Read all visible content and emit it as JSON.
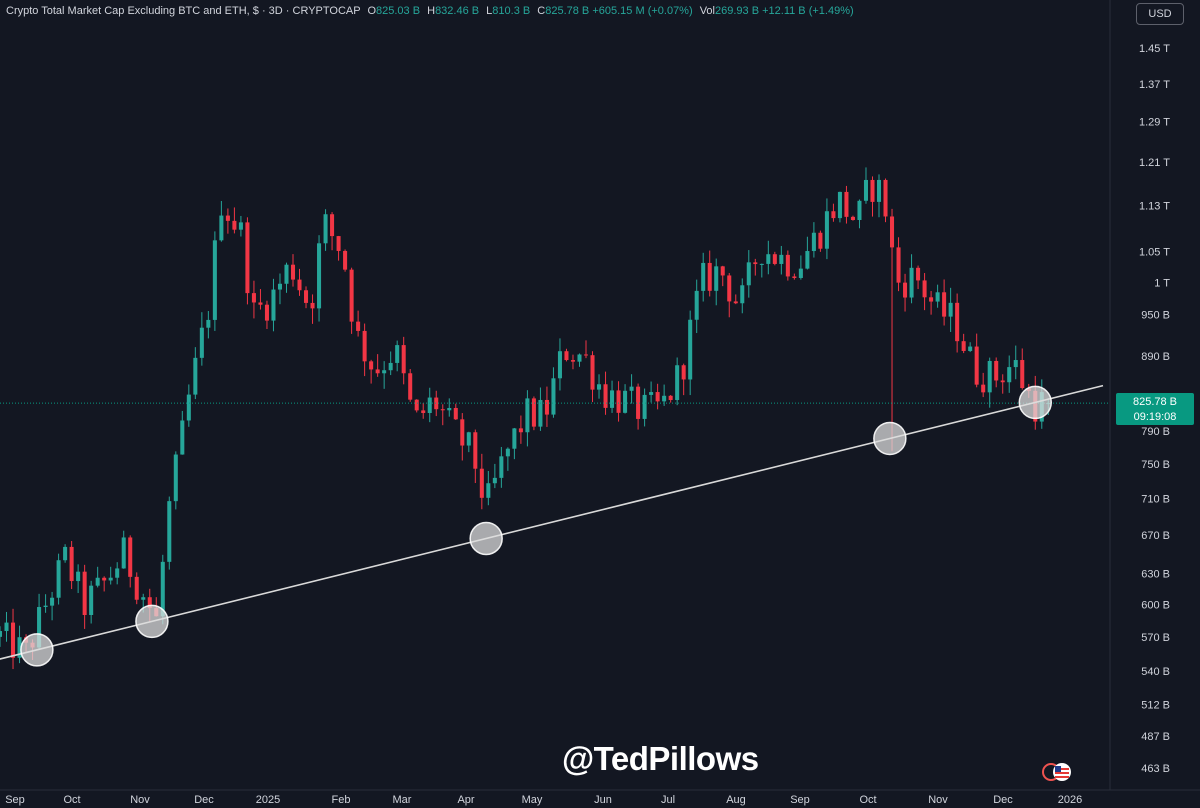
{
  "legend": {
    "title": "Crypto Total Market Cap Excluding BTC and ETH, $ · 3D · CRYPTOCAP",
    "open_label": "O",
    "open": "825.03 B",
    "high_label": "H",
    "high": "832.46 B",
    "low_label": "L",
    "low": "810.3 B",
    "close_label": "C",
    "close": "825.78 B",
    "change": "+605.15 M (+0.07%)",
    "vol_label": "Vol",
    "volume": "269.93 B",
    "vol_change": "+12.11 B (+1.49%)"
  },
  "currency_button": "USD",
  "price_badge": {
    "price": "825.78 B",
    "countdown": "09:19:08"
  },
  "watermark": "@TedPillows",
  "colors": {
    "up": "#26a69a",
    "down": "#f23645",
    "background": "#131722",
    "trendline": "#d9d9d9"
  },
  "chart_data": {
    "type": "candlestick",
    "title": "Crypto Total Market Cap Excluding BTC and ETH",
    "interval": "3D",
    "y_scale": "log",
    "ylim_billions": [
      455,
      1500
    ],
    "y_ticks": [
      {
        "label": "1.45 T",
        "value": 1450
      },
      {
        "label": "1.37 T",
        "value": 1370
      },
      {
        "label": "1.29 T",
        "value": 1290
      },
      {
        "label": "1.21 T",
        "value": 1210
      },
      {
        "label": "1.13 T",
        "value": 1130
      },
      {
        "label": "1.05 T",
        "value": 1050
      },
      {
        "label": "1 T",
        "value": 1000
      },
      {
        "label": "950 B",
        "value": 950
      },
      {
        "label": "890 B",
        "value": 890
      },
      {
        "label": "790 B",
        "value": 790
      },
      {
        "label": "750 B",
        "value": 750
      },
      {
        "label": "710 B",
        "value": 710
      },
      {
        "label": "670 B",
        "value": 670
      },
      {
        "label": "630 B",
        "value": 630
      },
      {
        "label": "600 B",
        "value": 600
      },
      {
        "label": "570 B",
        "value": 570
      },
      {
        "label": "540 B",
        "value": 540
      },
      {
        "label": "512 B",
        "value": 512
      },
      {
        "label": "487 B",
        "value": 487
      },
      {
        "label": "463 B",
        "value": 463
      }
    ],
    "x_ticks": [
      "Sep",
      "Oct",
      "Nov",
      "Dec",
      "2025",
      "Feb",
      "Mar",
      "Apr",
      "May",
      "Jun",
      "Jul",
      "Aug",
      "Sep",
      "Oct",
      "Nov",
      "Dec",
      "2026"
    ],
    "x_range": [
      "2024-08-26",
      "2026-01-04"
    ],
    "current_price": 825.78,
    "trendline": {
      "start": {
        "date": "2024-09-07",
        "value": 556
      },
      "end": {
        "date": "2026-01-01",
        "value": 838
      }
    },
    "touch_points": [
      {
        "date": "2024-09-12",
        "value": 556
      },
      {
        "date": "2024-11-04",
        "value": 580
      },
      {
        "date": "2025-04-07",
        "value": 662
      },
      {
        "date": "2025-10-10",
        "value": 765
      },
      {
        "date": "2025-12-16",
        "value": 813
      }
    ],
    "price_path": [
      {
        "date": "2024-08-26",
        "value": 570
      },
      {
        "date": "2024-09-07",
        "value": 555
      },
      {
        "date": "2024-09-16",
        "value": 600
      },
      {
        "date": "2024-09-25",
        "value": 645
      },
      {
        "date": "2024-10-04",
        "value": 600
      },
      {
        "date": "2024-10-13",
        "value": 620
      },
      {
        "date": "2024-10-22",
        "value": 650
      },
      {
        "date": "2024-10-31",
        "value": 610
      },
      {
        "date": "2024-11-06",
        "value": 585
      },
      {
        "date": "2024-11-12",
        "value": 700
      },
      {
        "date": "2024-11-21",
        "value": 830
      },
      {
        "date": "2024-11-30",
        "value": 960
      },
      {
        "date": "2024-12-06",
        "value": 1140
      },
      {
        "date": "2024-12-15",
        "value": 1080
      },
      {
        "date": "2024-12-21",
        "value": 950
      },
      {
        "date": "2024-12-30",
        "value": 980
      },
      {
        "date": "2025-01-07",
        "value": 1030
      },
      {
        "date": "2025-01-16",
        "value": 960
      },
      {
        "date": "2025-01-22",
        "value": 1100
      },
      {
        "date": "2025-01-31",
        "value": 1050
      },
      {
        "date": "2025-02-06",
        "value": 920
      },
      {
        "date": "2025-02-15",
        "value": 870
      },
      {
        "date": "2025-02-24",
        "value": 900
      },
      {
        "date": "2025-03-05",
        "value": 800
      },
      {
        "date": "2025-03-14",
        "value": 830
      },
      {
        "date": "2025-03-23",
        "value": 790
      },
      {
        "date": "2025-04-01",
        "value": 760
      },
      {
        "date": "2025-04-07",
        "value": 700
      },
      {
        "date": "2025-04-16",
        "value": 760
      },
      {
        "date": "2025-04-25",
        "value": 810
      },
      {
        "date": "2025-05-04",
        "value": 810
      },
      {
        "date": "2025-05-13",
        "value": 900
      },
      {
        "date": "2025-05-22",
        "value": 890
      },
      {
        "date": "2025-05-31",
        "value": 840
      },
      {
        "date": "2025-06-09",
        "value": 830
      },
      {
        "date": "2025-06-18",
        "value": 815
      },
      {
        "date": "2025-06-27",
        "value": 820
      },
      {
        "date": "2025-07-06",
        "value": 870
      },
      {
        "date": "2025-07-15",
        "value": 1000
      },
      {
        "date": "2025-07-24",
        "value": 1020
      },
      {
        "date": "2025-08-02",
        "value": 960
      },
      {
        "date": "2025-08-11",
        "value": 1060
      },
      {
        "date": "2025-08-20",
        "value": 1040
      },
      {
        "date": "2025-08-29",
        "value": 1030
      },
      {
        "date": "2025-09-07",
        "value": 1080
      },
      {
        "date": "2025-09-16",
        "value": 1140
      },
      {
        "date": "2025-09-25",
        "value": 1100
      },
      {
        "date": "2025-10-01",
        "value": 1170
      },
      {
        "date": "2025-10-07",
        "value": 1150
      },
      {
        "date": "2025-10-13",
        "value": 1000
      },
      {
        "date": "2025-10-22",
        "value": 1010
      },
      {
        "date": "2025-10-31",
        "value": 960
      },
      {
        "date": "2025-11-09",
        "value": 940
      },
      {
        "date": "2025-11-18",
        "value": 870
      },
      {
        "date": "2025-11-27",
        "value": 860
      },
      {
        "date": "2025-12-06",
        "value": 880
      },
      {
        "date": "2025-12-15",
        "value": 825
      },
      {
        "date": "2025-12-24",
        "value": 826
      }
    ]
  }
}
